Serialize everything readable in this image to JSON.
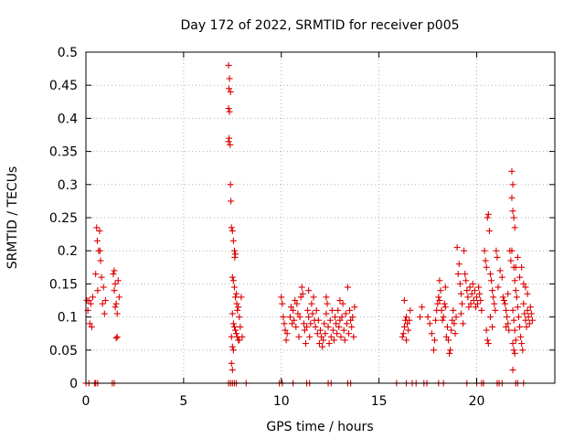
{
  "chart_data": {
    "type": "scatter",
    "title": "Day 172 of 2022, SRMTID for receiver p005",
    "xlabel": "GPS time / hours",
    "ylabel": "SRMTID / TECUs",
    "xlim": [
      0,
      24
    ],
    "ylim": [
      0,
      0.5
    ],
    "xticks": [
      0,
      5,
      10,
      15,
      20
    ],
    "yticks": [
      0,
      0.05,
      0.1,
      0.15,
      0.2,
      0.25,
      0.3,
      0.35,
      0.4,
      0.45,
      0.5
    ],
    "ytick_labels": [
      "0",
      "0.05",
      "0.1",
      "0.15",
      "0.2",
      "0.25",
      "0.3",
      "0.35",
      "0.4",
      "0.45",
      "0.5"
    ],
    "xtick_labels": [
      "0",
      "5",
      "10",
      "15",
      "20"
    ],
    "grid": true,
    "marker": "+",
    "color": "#dd0000",
    "series": [
      {
        "name": "SRMTID",
        "points": [
          [
            0.05,
            0.125
          ],
          [
            0.1,
            0.11
          ],
          [
            0.15,
            0.125
          ],
          [
            0.2,
            0.09
          ],
          [
            0.25,
            0.12
          ],
          [
            0.3,
            0.085
          ],
          [
            0.35,
            0.13
          ],
          [
            0.55,
            0.235
          ],
          [
            0.6,
            0.14
          ],
          [
            0.65,
            0.2
          ],
          [
            0.7,
            0.23
          ],
          [
            0.75,
            0.185
          ],
          [
            0.8,
            0.16
          ],
          [
            0.85,
            0.12
          ],
          [
            0.9,
            0.145
          ],
          [
            0.95,
            0.105
          ],
          [
            1.0,
            0.125
          ],
          [
            0.5,
            0.165
          ],
          [
            0.58,
            0.215
          ],
          [
            0.72,
            0.2
          ],
          [
            1.4,
            0.165
          ],
          [
            1.45,
            0.14
          ],
          [
            1.5,
            0.15
          ],
          [
            1.55,
            0.12
          ],
          [
            1.6,
            0.105
          ],
          [
            1.65,
            0.155
          ],
          [
            1.7,
            0.13
          ],
          [
            1.45,
            0.17
          ],
          [
            1.5,
            0.115
          ],
          [
            1.55,
            0.068
          ],
          [
            1.6,
            0.07
          ],
          [
            7.3,
            0.48
          ],
          [
            7.35,
            0.46
          ],
          [
            7.32,
            0.445
          ],
          [
            7.4,
            0.44
          ],
          [
            7.3,
            0.415
          ],
          [
            7.35,
            0.41
          ],
          [
            7.33,
            0.37
          ],
          [
            7.38,
            0.36
          ],
          [
            7.3,
            0.365
          ],
          [
            7.4,
            0.3
          ],
          [
            7.42,
            0.275
          ],
          [
            7.45,
            0.235
          ],
          [
            7.5,
            0.23
          ],
          [
            7.55,
            0.215
          ],
          [
            7.6,
            0.2
          ],
          [
            7.62,
            0.19
          ],
          [
            7.65,
            0.195
          ],
          [
            7.5,
            0.16
          ],
          [
            7.55,
            0.155
          ],
          [
            7.6,
            0.145
          ],
          [
            7.65,
            0.13
          ],
          [
            7.7,
            0.135
          ],
          [
            7.72,
            0.12
          ],
          [
            7.75,
            0.11
          ],
          [
            7.8,
            0.115
          ],
          [
            7.85,
            0.1
          ],
          [
            7.5,
            0.105
          ],
          [
            7.55,
            0.09
          ],
          [
            7.6,
            0.085
          ],
          [
            7.65,
            0.08
          ],
          [
            7.7,
            0.075
          ],
          [
            7.75,
            0.07
          ],
          [
            7.8,
            0.065
          ],
          [
            7.85,
            0.065
          ],
          [
            7.45,
            0.07
          ],
          [
            7.5,
            0.055
          ],
          [
            7.55,
            0.05
          ],
          [
            7.45,
            0.03
          ],
          [
            7.5,
            0.02
          ],
          [
            7.9,
            0.085
          ],
          [
            8.0,
            0.07
          ],
          [
            7.95,
            0.13
          ],
          [
            10.0,
            0.13
          ],
          [
            10.05,
            0.12
          ],
          [
            10.1,
            0.1
          ],
          [
            10.15,
            0.09
          ],
          [
            10.2,
            0.08
          ],
          [
            10.25,
            0.065
          ],
          [
            10.3,
            0.075
          ],
          [
            10.45,
            0.1
          ],
          [
            10.5,
            0.115
          ],
          [
            10.55,
            0.09
          ],
          [
            10.6,
            0.11
          ],
          [
            10.65,
            0.095
          ],
          [
            10.7,
            0.125
          ],
          [
            10.75,
            0.085
          ],
          [
            10.8,
            0.12
          ],
          [
            10.85,
            0.105
          ],
          [
            10.9,
            0.07
          ],
          [
            10.95,
            0.1
          ],
          [
            11.0,
            0.13
          ],
          [
            11.05,
            0.145
          ],
          [
            11.1,
            0.135
          ],
          [
            11.15,
            0.09
          ],
          [
            11.2,
            0.08
          ],
          [
            11.25,
            0.06
          ],
          [
            11.3,
            0.085
          ],
          [
            11.35,
            0.11
          ],
          [
            11.4,
            0.1
          ],
          [
            11.45,
            0.07
          ],
          [
            11.5,
            0.09
          ],
          [
            11.55,
            0.12
          ],
          [
            11.6,
            0.105
          ],
          [
            11.65,
            0.13
          ],
          [
            11.7,
            0.095
          ],
          [
            11.75,
            0.085
          ],
          [
            11.8,
            0.11
          ],
          [
            11.85,
            0.075
          ],
          [
            11.9,
            0.095
          ],
          [
            11.95,
            0.06
          ],
          [
            12.0,
            0.08
          ],
          [
            12.05,
            0.07
          ],
          [
            12.1,
            0.055
          ],
          [
            12.15,
            0.065
          ],
          [
            12.2,
            0.09
          ],
          [
            12.25,
            0.075
          ],
          [
            12.3,
            0.105
          ],
          [
            12.35,
            0.12
          ],
          [
            12.4,
            0.085
          ],
          [
            12.45,
            0.06
          ],
          [
            12.5,
            0.095
          ],
          [
            12.55,
            0.07
          ],
          [
            12.6,
            0.11
          ],
          [
            12.65,
            0.08
          ],
          [
            12.7,
            0.065
          ],
          [
            12.75,
            0.1
          ],
          [
            12.8,
            0.09
          ],
          [
            12.85,
            0.075
          ],
          [
            12.9,
            0.11
          ],
          [
            12.95,
            0.085
          ],
          [
            13.0,
            0.095
          ],
          [
            13.05,
            0.07
          ],
          [
            13.1,
            0.1
          ],
          [
            13.15,
            0.12
          ],
          [
            13.2,
            0.08
          ],
          [
            13.25,
            0.065
          ],
          [
            13.3,
            0.105
          ],
          [
            13.35,
            0.09
          ],
          [
            13.4,
            0.145
          ],
          [
            13.45,
            0.075
          ],
          [
            13.5,
            0.11
          ],
          [
            13.55,
            0.095
          ],
          [
            13.6,
            0.085
          ],
          [
            13.65,
            0.1
          ],
          [
            13.7,
            0.07
          ],
          [
            13.75,
            0.115
          ],
          [
            11.4,
            0.14
          ],
          [
            12.3,
            0.13
          ],
          [
            13.0,
            0.125
          ],
          [
            16.2,
            0.07
          ],
          [
            16.25,
            0.075
          ],
          [
            16.3,
            0.085
          ],
          [
            16.35,
            0.095
          ],
          [
            16.4,
            0.1
          ],
          [
            16.45,
            0.09
          ],
          [
            16.5,
            0.08
          ],
          [
            16.55,
            0.095
          ],
          [
            16.6,
            0.11
          ],
          [
            16.3,
            0.125
          ],
          [
            16.4,
            0.065
          ],
          [
            17.1,
            0.1
          ],
          [
            17.2,
            0.115
          ],
          [
            17.5,
            0.1
          ],
          [
            17.6,
            0.09
          ],
          [
            17.7,
            0.075
          ],
          [
            17.8,
            0.05
          ],
          [
            17.85,
            0.065
          ],
          [
            17.9,
            0.095
          ],
          [
            17.95,
            0.11
          ],
          [
            18.0,
            0.12
          ],
          [
            18.05,
            0.13
          ],
          [
            18.1,
            0.125
          ],
          [
            18.15,
            0.14
          ],
          [
            18.2,
            0.11
          ],
          [
            18.25,
            0.095
          ],
          [
            18.3,
            0.1
          ],
          [
            18.35,
            0.12
          ],
          [
            18.4,
            0.115
          ],
          [
            18.45,
            0.07
          ],
          [
            18.5,
            0.085
          ],
          [
            18.55,
            0.065
          ],
          [
            18.6,
            0.045
          ],
          [
            18.65,
            0.05
          ],
          [
            18.7,
            0.08
          ],
          [
            18.75,
            0.095
          ],
          [
            18.8,
            0.11
          ],
          [
            18.85,
            0.09
          ],
          [
            18.9,
            0.075
          ],
          [
            18.95,
            0.1
          ],
          [
            19.0,
            0.205
          ],
          [
            19.05,
            0.165
          ],
          [
            19.1,
            0.18
          ],
          [
            19.15,
            0.15
          ],
          [
            19.2,
            0.135
          ],
          [
            19.25,
            0.12
          ],
          [
            19.3,
            0.09
          ],
          [
            19.35,
            0.2
          ],
          [
            19.4,
            0.165
          ],
          [
            19.45,
            0.155
          ],
          [
            19.5,
            0.14
          ],
          [
            19.55,
            0.13
          ],
          [
            19.6,
            0.115
          ],
          [
            19.65,
            0.145
          ],
          [
            19.7,
            0.12
          ],
          [
            19.75,
            0.135
          ],
          [
            19.8,
            0.15
          ],
          [
            19.85,
            0.125
          ],
          [
            19.9,
            0.14
          ],
          [
            19.95,
            0.115
          ],
          [
            20.0,
            0.13
          ],
          [
            20.05,
            0.12
          ],
          [
            20.1,
            0.145
          ],
          [
            20.15,
            0.135
          ],
          [
            20.2,
            0.125
          ],
          [
            20.25,
            0.11
          ],
          [
            18.1,
            0.155
          ],
          [
            18.4,
            0.145
          ],
          [
            19.2,
            0.105
          ],
          [
            20.4,
            0.2
          ],
          [
            20.45,
            0.185
          ],
          [
            20.5,
            0.175
          ],
          [
            20.55,
            0.25
          ],
          [
            20.6,
            0.255
          ],
          [
            20.65,
            0.23
          ],
          [
            20.7,
            0.165
          ],
          [
            20.75,
            0.155
          ],
          [
            20.8,
            0.14
          ],
          [
            20.85,
            0.13
          ],
          [
            20.9,
            0.12
          ],
          [
            20.95,
            0.11
          ],
          [
            21.0,
            0.2
          ],
          [
            21.05,
            0.19
          ],
          [
            20.5,
            0.08
          ],
          [
            20.55,
            0.065
          ],
          [
            20.6,
            0.06
          ],
          [
            20.7,
            0.1
          ],
          [
            20.8,
            0.085
          ],
          [
            21.1,
            0.145
          ],
          [
            21.2,
            0.17
          ],
          [
            21.3,
            0.16
          ],
          [
            21.35,
            0.13
          ],
          [
            21.4,
            0.125
          ],
          [
            21.45,
            0.12
          ],
          [
            21.5,
            0.11
          ],
          [
            21.55,
            0.1
          ],
          [
            21.6,
            0.09
          ],
          [
            21.65,
            0.08
          ],
          [
            21.7,
            0.2
          ],
          [
            21.75,
            0.185
          ],
          [
            21.8,
            0.32
          ],
          [
            21.85,
            0.3
          ],
          [
            21.8,
            0.28
          ],
          [
            21.85,
            0.26
          ],
          [
            21.9,
            0.25
          ],
          [
            21.95,
            0.235
          ],
          [
            21.8,
            0.2
          ],
          [
            21.9,
            0.175
          ],
          [
            21.95,
            0.155
          ],
          [
            22.0,
            0.14
          ],
          [
            21.85,
            0.11
          ],
          [
            21.9,
            0.095
          ],
          [
            21.95,
            0.08
          ],
          [
            22.0,
            0.065
          ],
          [
            21.85,
            0.06
          ],
          [
            21.9,
            0.05
          ],
          [
            21.95,
            0.045
          ],
          [
            21.85,
            0.02
          ],
          [
            22.05,
            0.13
          ],
          [
            22.1,
            0.115
          ],
          [
            22.15,
            0.1
          ],
          [
            22.2,
            0.085
          ],
          [
            22.25,
            0.07
          ],
          [
            22.3,
            0.06
          ],
          [
            22.35,
            0.05
          ],
          [
            22.4,
            0.12
          ],
          [
            22.45,
            0.105
          ],
          [
            22.5,
            0.095
          ],
          [
            22.55,
            0.085
          ],
          [
            22.6,
            0.11
          ],
          [
            22.65,
            0.1
          ],
          [
            22.7,
            0.09
          ],
          [
            22.75,
            0.115
          ],
          [
            22.8,
            0.105
          ],
          [
            22.85,
            0.095
          ],
          [
            22.4,
            0.15
          ],
          [
            22.5,
            0.145
          ],
          [
            22.6,
            0.135
          ],
          [
            22.3,
            0.175
          ],
          [
            22.2,
            0.16
          ],
          [
            22.1,
            0.19
          ],
          [
            22.0,
            0.175
          ],
          [
            21.6,
            0.135
          ],
          [
            21.5,
            0.085
          ]
        ],
        "zero_points": [
          0.0,
          0.15,
          0.45,
          0.5,
          0.6,
          1.35,
          1.45,
          7.3,
          7.4,
          7.5,
          7.6,
          7.7,
          8.2,
          9.9,
          10.05,
          10.6,
          11.3,
          11.45,
          12.4,
          12.55,
          13.4,
          13.55,
          15.9,
          16.4,
          16.7,
          16.9,
          17.3,
          17.45,
          18.05,
          18.3,
          19.5,
          20.0,
          20.25,
          20.35,
          21.05,
          21.15,
          21.3,
          22.0,
          22.1,
          22.4
        ]
      }
    ]
  }
}
